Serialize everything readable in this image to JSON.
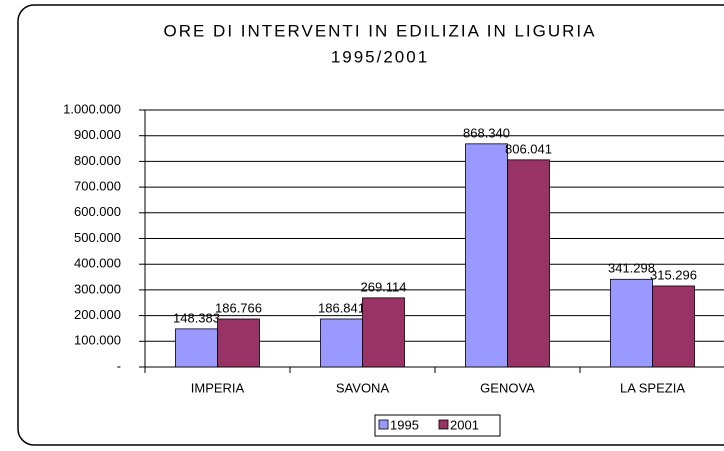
{
  "chart_data": {
    "type": "bar",
    "title": "ORE DI INTERVENTI IN EDILIZIA IN LIGURIA",
    "subtitle": "1995/2001",
    "categories": [
      "IMPERIA",
      "SAVONA",
      "GENOVA",
      "LA SPEZIA"
    ],
    "series": [
      {
        "name": "1995",
        "color": "#9999ff",
        "values": [
          148383,
          186841,
          868340,
          341298
        ],
        "value_labels": [
          "148.383",
          "186.841",
          "868.340",
          "341.298"
        ]
      },
      {
        "name": "2001",
        "color": "#993366",
        "values": [
          186766,
          269114,
          806041,
          315296
        ],
        "value_labels": [
          "186.766",
          "269.114",
          "806.041",
          "315.296"
        ]
      }
    ],
    "ylim": [
      0,
      1000000
    ],
    "yticks": [
      {
        "value": 0,
        "label": "-"
      },
      {
        "value": 100000,
        "label": "100.000"
      },
      {
        "value": 200000,
        "label": "200.000"
      },
      {
        "value": 300000,
        "label": "300.000"
      },
      {
        "value": 400000,
        "label": "400.000"
      },
      {
        "value": 500000,
        "label": "500.000"
      },
      {
        "value": 600000,
        "label": "600.000"
      },
      {
        "value": 700000,
        "label": "700.000"
      },
      {
        "value": 800000,
        "label": "800.000"
      },
      {
        "value": 900000,
        "label": "900.000"
      },
      {
        "value": 1000000,
        "label": "1.000.000"
      }
    ],
    "grid": true,
    "legend": "bottom"
  }
}
